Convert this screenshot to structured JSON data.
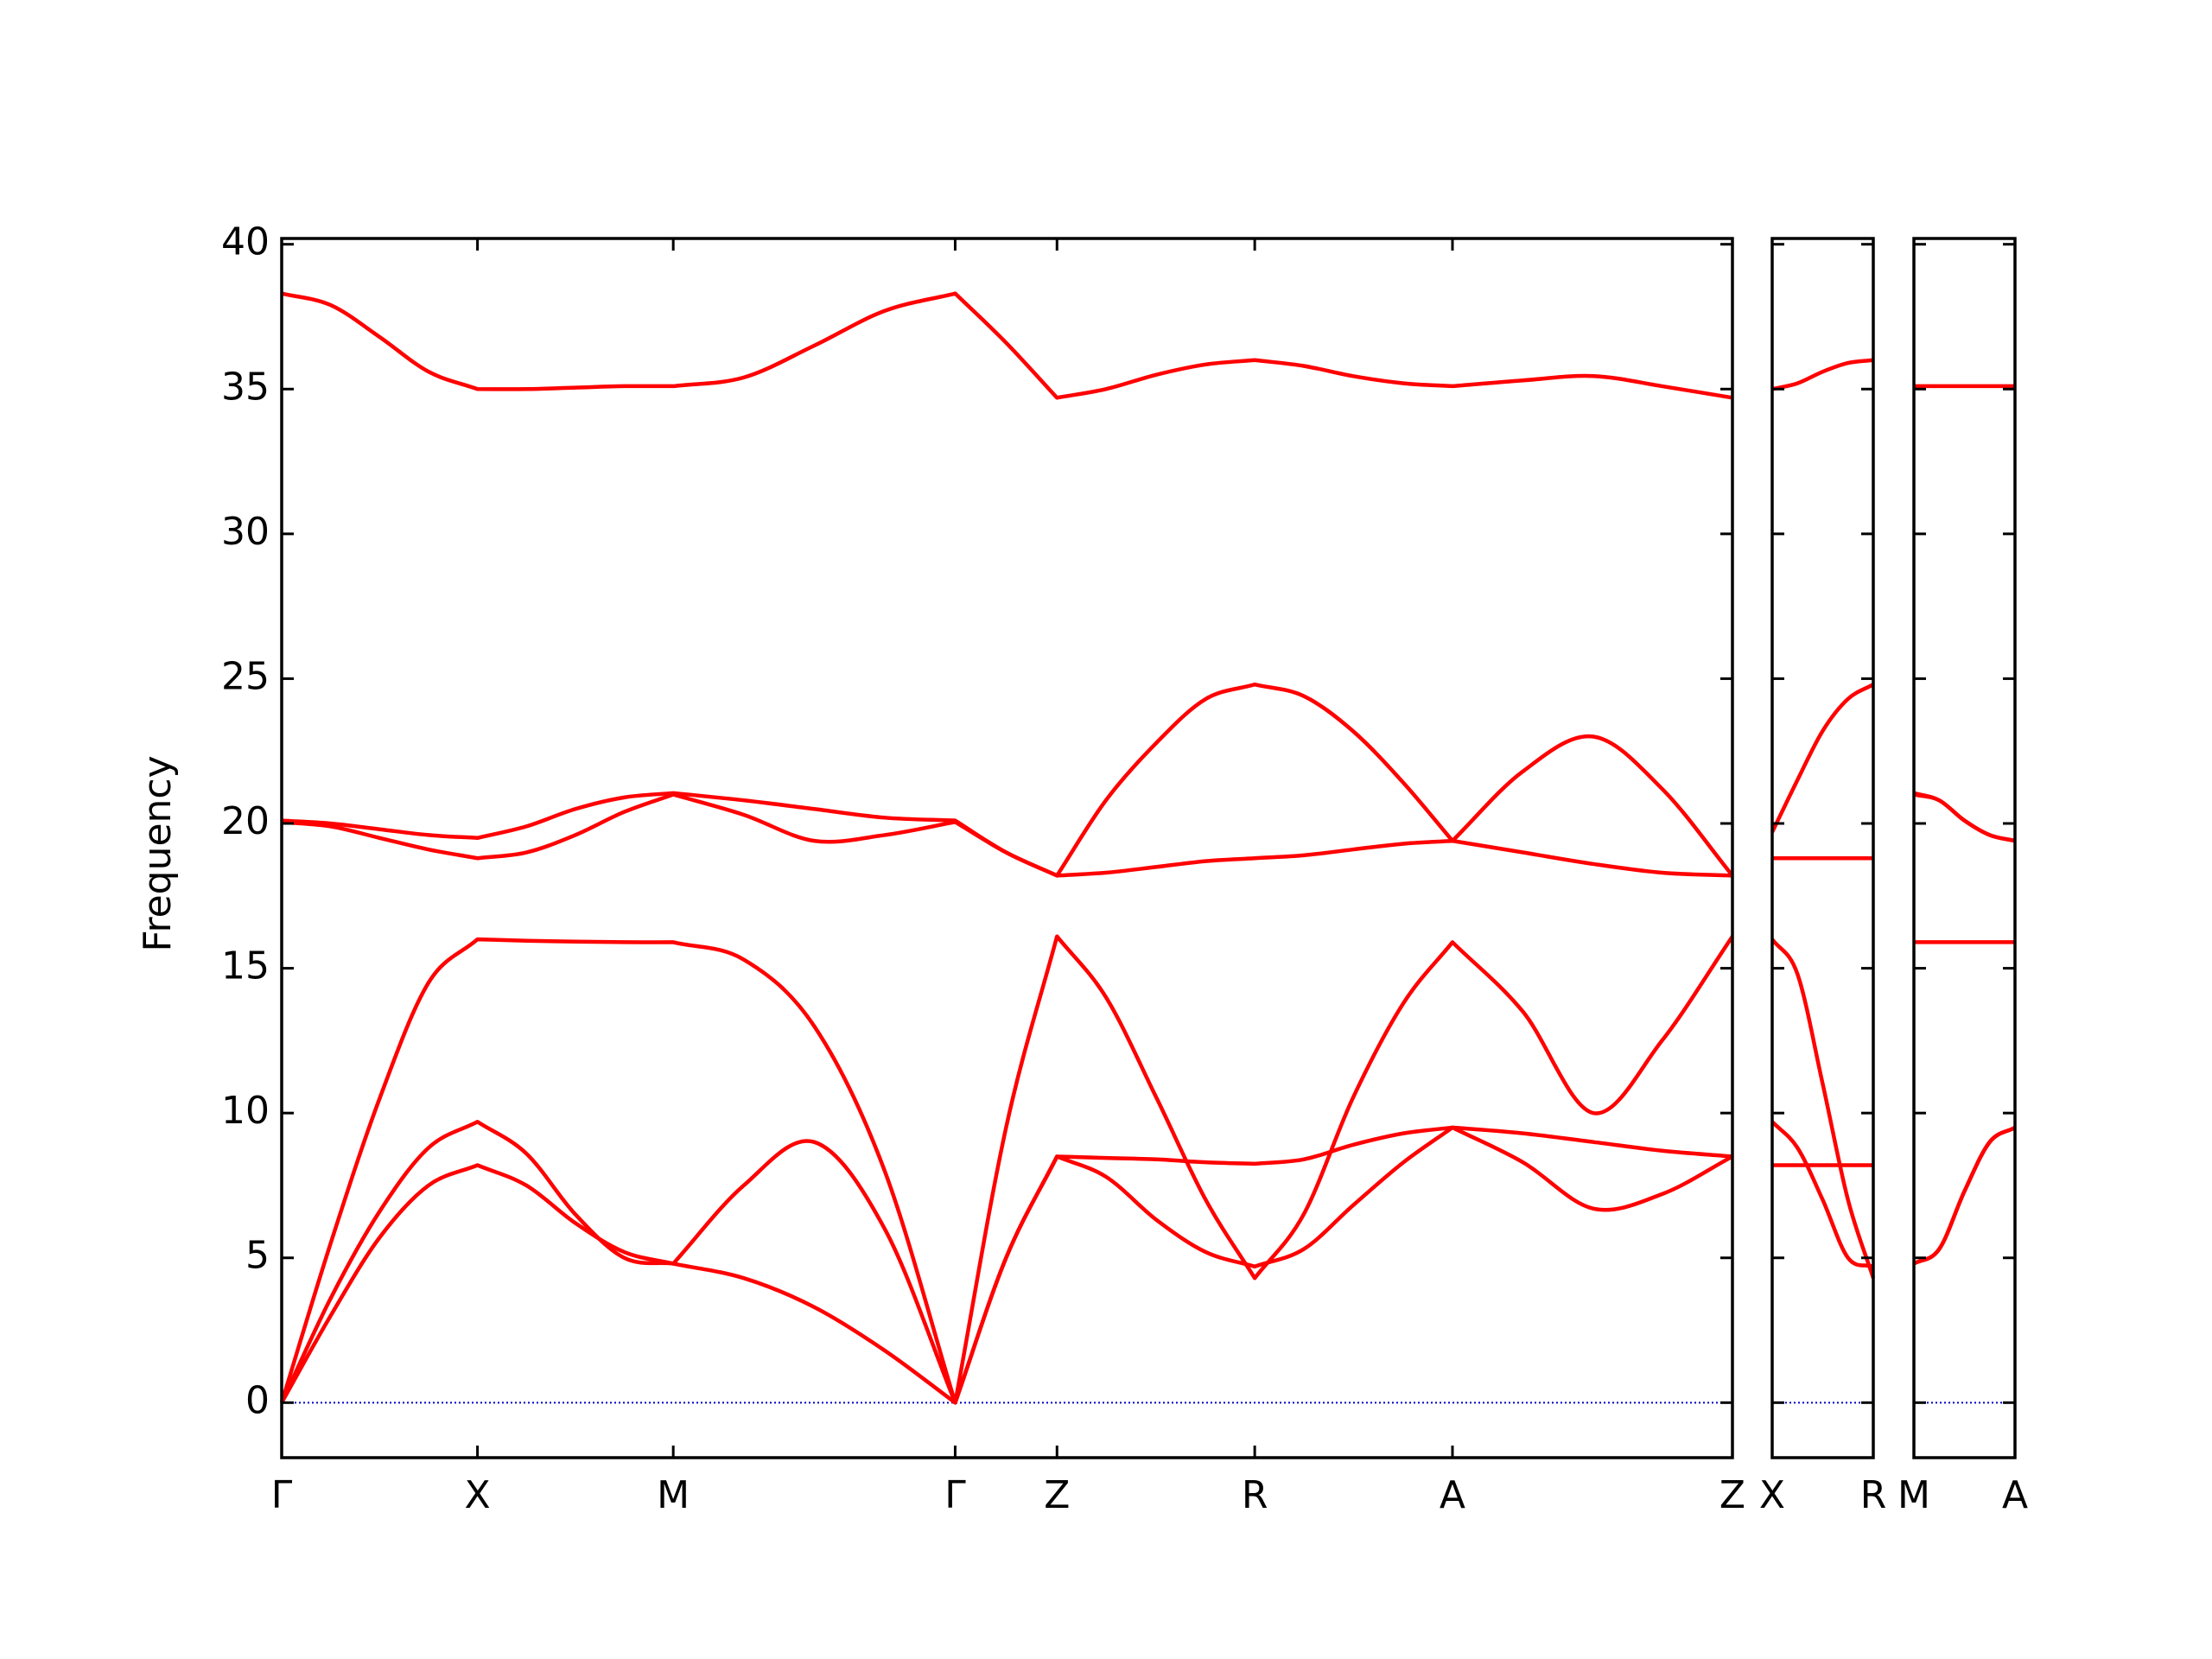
{
  "chart_data": [
    {
      "type": "line",
      "y_label": "Frequency",
      "x": [
        0,
        0.25,
        0.5,
        0.75,
        1,
        1.25,
        1.5,
        1.75,
        2,
        2.36,
        2.72,
        3.08,
        3.44,
        3.7,
        3.96,
        4.21,
        4.47,
        4.72,
        4.97,
        5.22,
        5.47,
        5.73,
        5.98,
        6.34,
        6.7,
        7.05,
        7.41
      ],
      "xlim": [
        0,
        7.41
      ],
      "xticks": [
        {
          "value": 0,
          "label": "Γ"
        },
        {
          "value": 1,
          "label": "X"
        },
        {
          "value": 2,
          "label": "M"
        },
        {
          "value": 3.44,
          "label": "Γ"
        },
        {
          "value": 3.96,
          "label": "Z"
        },
        {
          "value": 4.97,
          "label": "R"
        },
        {
          "value": 5.98,
          "label": "A"
        },
        {
          "value": 7.41,
          "label": "Z"
        }
      ],
      "ylim": [
        -1.9,
        40.2
      ],
      "yticks": [
        0,
        5,
        10,
        15,
        20,
        25,
        30,
        35,
        40
      ],
      "hline": 0,
      "hline_color": "#0000cc",
      "series": [
        {
          "color": "#ff0000",
          "values": [
            38.3,
            37.9,
            36.8,
            35.6,
            35.0,
            35.0,
            35.05,
            35.1,
            35.1,
            35.4,
            36.5,
            37.7,
            38.3,
            36.6,
            34.7,
            35.0,
            35.5,
            35.85,
            36.0,
            35.8,
            35.45,
            35.2,
            35.1,
            35.3,
            35.45,
            35.1,
            34.7
          ]
        },
        {
          "color": "#ff0000",
          "values": [
            20.1,
            20.0,
            19.8,
            19.6,
            19.5,
            19.9,
            20.5,
            20.9,
            21.05,
            20.8,
            20.5,
            20.2,
            20.1,
            19.0,
            18.2,
            20.8,
            22.8,
            24.3,
            24.8,
            24.4,
            23.2,
            21.4,
            19.4,
            21.8,
            23.0,
            21.2,
            18.2
          ]
        },
        {
          "color": "#ff0000",
          "values": [
            20.05,
            19.9,
            19.5,
            19.1,
            18.8,
            19.0,
            19.6,
            20.4,
            21.0,
            20.3,
            19.4,
            19.6,
            20.05,
            19.0,
            18.2,
            18.3,
            18.5,
            18.7,
            18.8,
            18.9,
            19.1,
            19.3,
            19.4,
            19.0,
            18.6,
            18.3,
            18.2
          ]
        },
        {
          "color": "#ff0000",
          "values": [
            0,
            5.5,
            10.5,
            14.5,
            16.0,
            15.95,
            15.92,
            15.9,
            15.9,
            15.3,
            13.0,
            8.0,
            0,
            9.5,
            16.1,
            14.0,
            10.5,
            7.0,
            4.3,
            6.5,
            10.5,
            13.8,
            15.9,
            13.5,
            10.0,
            12.5,
            16.1
          ]
        },
        {
          "color": "#ff0000",
          "values": [
            0,
            3.6,
            6.6,
            8.8,
            9.7,
            8.6,
            6.5,
            5.0,
            4.8,
            7.5,
            9.0,
            6.0,
            0,
            5.0,
            8.5,
            8.45,
            8.4,
            8.3,
            8.25,
            8.4,
            8.9,
            9.3,
            9.5,
            9.3,
            9.0,
            8.7,
            8.5
          ]
        },
        {
          "color": "#ff0000",
          "values": [
            0,
            3.0,
            5.7,
            7.5,
            8.2,
            7.5,
            6.2,
            5.2,
            4.8,
            4.3,
            3.3,
            1.8,
            0,
            5.0,
            8.5,
            7.8,
            6.3,
            5.2,
            4.7,
            5.3,
            6.8,
            8.3,
            9.5,
            8.3,
            6.7,
            7.2,
            8.5
          ]
        }
      ]
    },
    {
      "type": "line",
      "x": [
        0,
        0.13,
        0.26,
        0.39,
        0.52
      ],
      "xlim": [
        0,
        0.52
      ],
      "xticks": [
        {
          "value": 0,
          "label": "X"
        },
        {
          "value": 0.52,
          "label": "R"
        }
      ],
      "ylim": [
        -1.9,
        40.2
      ],
      "hline": 0,
      "hline_color": "#0000cc",
      "series": [
        {
          "color": "#ff0000",
          "values": [
            35.0,
            35.2,
            35.6,
            35.9,
            36.0
          ]
        },
        {
          "color": "#ff0000",
          "values": [
            19.7,
            21.5,
            23.2,
            24.3,
            24.8
          ]
        },
        {
          "color": "#ff0000",
          "values": [
            18.8,
            18.8,
            18.8,
            18.8,
            18.8
          ]
        },
        {
          "color": "#ff0000",
          "values": [
            16.0,
            14.8,
            11.0,
            7.0,
            4.3
          ]
        },
        {
          "color": "#ff0000",
          "values": [
            9.7,
            8.8,
            7.0,
            5.0,
            4.7
          ]
        },
        {
          "color": "#ff0000",
          "values": [
            8.2,
            8.2,
            8.2,
            8.2,
            8.2
          ]
        }
      ]
    },
    {
      "type": "line",
      "x": [
        0,
        0.13,
        0.26,
        0.39,
        0.52
      ],
      "xlim": [
        0,
        0.52
      ],
      "xticks": [
        {
          "value": 0,
          "label": "M"
        },
        {
          "value": 0.52,
          "label": "A"
        }
      ],
      "ylim": [
        -1.9,
        40.2
      ],
      "hline": 0,
      "hline_color": "#0000cc",
      "series": [
        {
          "color": "#ff0000",
          "values": [
            35.1,
            35.1,
            35.1,
            35.1,
            35.1
          ]
        },
        {
          "color": "#ff0000",
          "values": [
            21.05,
            20.8,
            20.1,
            19.6,
            19.4
          ]
        },
        {
          "color": "#ff0000",
          "values": [
            21.0,
            20.8,
            20.1,
            19.6,
            19.4
          ]
        },
        {
          "color": "#ff0000",
          "values": [
            15.9,
            15.9,
            15.9,
            15.9,
            15.9
          ]
        },
        {
          "color": "#ff0000",
          "values": [
            4.8,
            5.3,
            7.3,
            9.0,
            9.5
          ]
        },
        {
          "color": "#ff0000",
          "values": [
            4.8,
            5.3,
            7.3,
            9.0,
            9.5
          ]
        }
      ]
    }
  ]
}
